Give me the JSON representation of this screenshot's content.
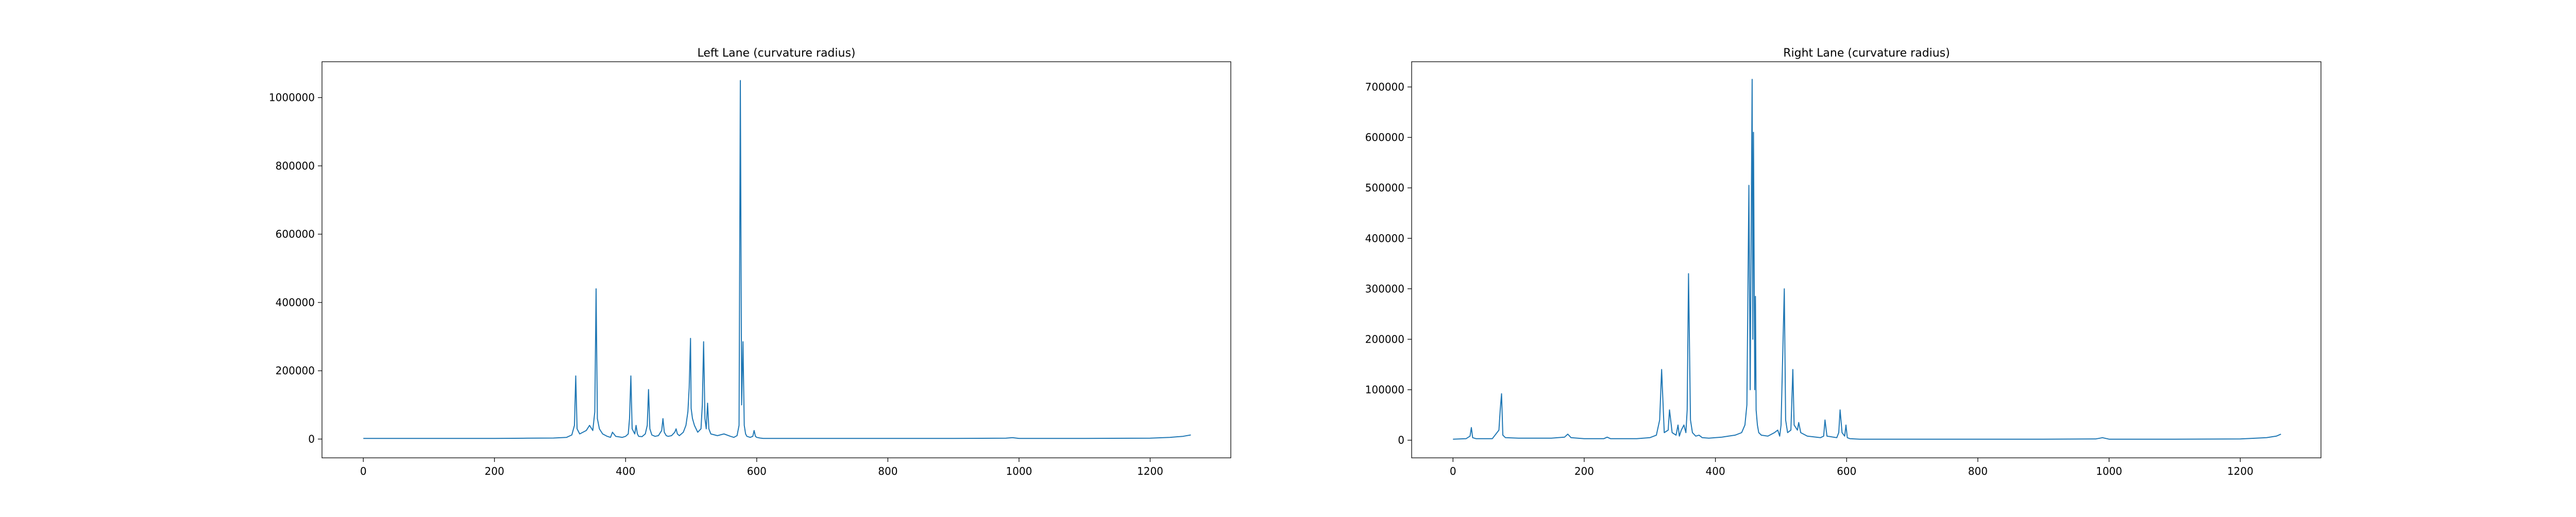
{
  "chart_data": [
    {
      "type": "line",
      "title": "Left Lane (curvature radius)",
      "xlabel": "",
      "ylabel": "",
      "xlim": [
        -63,
        1323
      ],
      "ylim": [
        -55000,
        1105000
      ],
      "xticks": [
        0,
        200,
        400,
        600,
        800,
        1000,
        1200
      ],
      "xtick_labels": [
        "0",
        "200",
        "400",
        "600",
        "800",
        "1000",
        "1200"
      ],
      "yticks": [
        0,
        200000,
        400000,
        600000,
        800000,
        1000000
      ],
      "ytick_labels": [
        "0",
        "200000",
        "400000",
        "600000",
        "800000",
        "1000000"
      ],
      "grid": false,
      "series": [
        {
          "color": "#1f77b4",
          "x": [
            0,
            50,
            100,
            150,
            200,
            250,
            290,
            310,
            318,
            322,
            324,
            326,
            330,
            340,
            345,
            350,
            353,
            355,
            357,
            360,
            365,
            368,
            372,
            377,
            380,
            385,
            395,
            400,
            404,
            406,
            408,
            410,
            414,
            416,
            418,
            420,
            425,
            430,
            433,
            435,
            437,
            440,
            445,
            450,
            455,
            457,
            459,
            462,
            465,
            470,
            475,
            477,
            479,
            482,
            488,
            492,
            495,
            497,
            499,
            500,
            502,
            505,
            510,
            515,
            517,
            519,
            521,
            523,
            525,
            527,
            530,
            540,
            550,
            560,
            565,
            570,
            573,
            575,
            577,
            579,
            581,
            583,
            585,
            590,
            594,
            596,
            598,
            600,
            605,
            610,
            650,
            700,
            800,
            900,
            980,
            990,
            1000,
            1100,
            1200,
            1230,
            1250,
            1262
          ],
          "y": [
            2000,
            2000,
            2000,
            2000,
            2000,
            2500,
            3000,
            5000,
            12000,
            40000,
            185000,
            30000,
            15000,
            25000,
            40000,
            25000,
            80000,
            440000,
            60000,
            30000,
            15000,
            12000,
            8000,
            5000,
            20000,
            8000,
            5000,
            8000,
            15000,
            60000,
            185000,
            30000,
            15000,
            40000,
            15000,
            8000,
            7000,
            15000,
            40000,
            145000,
            30000,
            12000,
            8000,
            10000,
            25000,
            60000,
            20000,
            10000,
            8000,
            10000,
            20000,
            30000,
            15000,
            10000,
            20000,
            40000,
            80000,
            150000,
            295000,
            90000,
            60000,
            40000,
            20000,
            30000,
            100000,
            285000,
            60000,
            30000,
            105000,
            30000,
            15000,
            10000,
            15000,
            8000,
            5000,
            10000,
            40000,
            1050000,
            100000,
            285000,
            40000,
            15000,
            8000,
            5000,
            8000,
            25000,
            8000,
            5000,
            3000,
            2000,
            2000,
            2000,
            2000,
            2000,
            2500,
            4000,
            2000,
            2000,
            2500,
            5000,
            8000,
            12000
          ]
        }
      ]
    },
    {
      "type": "line",
      "title": "Right Lane (curvature radius)",
      "xlabel": "",
      "ylabel": "",
      "xlim": [
        -63,
        1323
      ],
      "ylim": [
        -35000,
        750000
      ],
      "xticks": [
        0,
        200,
        400,
        600,
        800,
        1000,
        1200
      ],
      "xtick_labels": [
        "0",
        "200",
        "400",
        "600",
        "800",
        "1000",
        "1200"
      ],
      "yticks": [
        0,
        100000,
        200000,
        300000,
        400000,
        500000,
        600000,
        700000
      ],
      "ytick_labels": [
        "0",
        "100000",
        "200000",
        "300000",
        "400000",
        "500000",
        "600000",
        "700000"
      ],
      "grid": false,
      "series": [
        {
          "color": "#1f77b4",
          "x": [
            0,
            20,
            26,
            28,
            30,
            35,
            60,
            70,
            72,
            74,
            76,
            80,
            100,
            150,
            170,
            175,
            180,
            200,
            230,
            235,
            240,
            280,
            300,
            310,
            315,
            318,
            322,
            328,
            330,
            334,
            340,
            343,
            345,
            348,
            352,
            355,
            357,
            359,
            362,
            365,
            370,
            375,
            380,
            390,
            400,
            410,
            420,
            430,
            440,
            445,
            448,
            451,
            453,
            456,
            457,
            458,
            460,
            461,
            462,
            464,
            466,
            470,
            480,
            490,
            495,
            498,
            500,
            505,
            507,
            510,
            515,
            518,
            520,
            525,
            527,
            530,
            540,
            560,
            565,
            567,
            570,
            585,
            588,
            590,
            593,
            597,
            599,
            601,
            605,
            620,
            650,
            700,
            800,
            900,
            980,
            990,
            1000,
            1100,
            1200,
            1240,
            1255,
            1262
          ],
          "y": [
            2000,
            3000,
            8000,
            25000,
            5000,
            3000,
            3000,
            20000,
            60000,
            92000,
            10000,
            5000,
            4000,
            4000,
            6000,
            12000,
            5000,
            3000,
            3000,
            6000,
            3000,
            3000,
            5000,
            10000,
            40000,
            140000,
            15000,
            20000,
            60000,
            15000,
            10000,
            30000,
            8000,
            20000,
            30000,
            15000,
            60000,
            330000,
            40000,
            15000,
            8000,
            10000,
            5000,
            4000,
            5000,
            6000,
            8000,
            10000,
            15000,
            30000,
            70000,
            505000,
            100000,
            715000,
            200000,
            610000,
            100000,
            285000,
            60000,
            30000,
            15000,
            10000,
            8000,
            15000,
            20000,
            8000,
            30000,
            300000,
            40000,
            15000,
            20000,
            140000,
            30000,
            20000,
            35000,
            15000,
            8000,
            5000,
            8000,
            40000,
            8000,
            5000,
            15000,
            60000,
            15000,
            8000,
            30000,
            5000,
            3000,
            2000,
            2000,
            2000,
            2000,
            2000,
            2500,
            5000,
            2000,
            2000,
            2500,
            5000,
            8000,
            12000
          ]
        }
      ]
    }
  ]
}
